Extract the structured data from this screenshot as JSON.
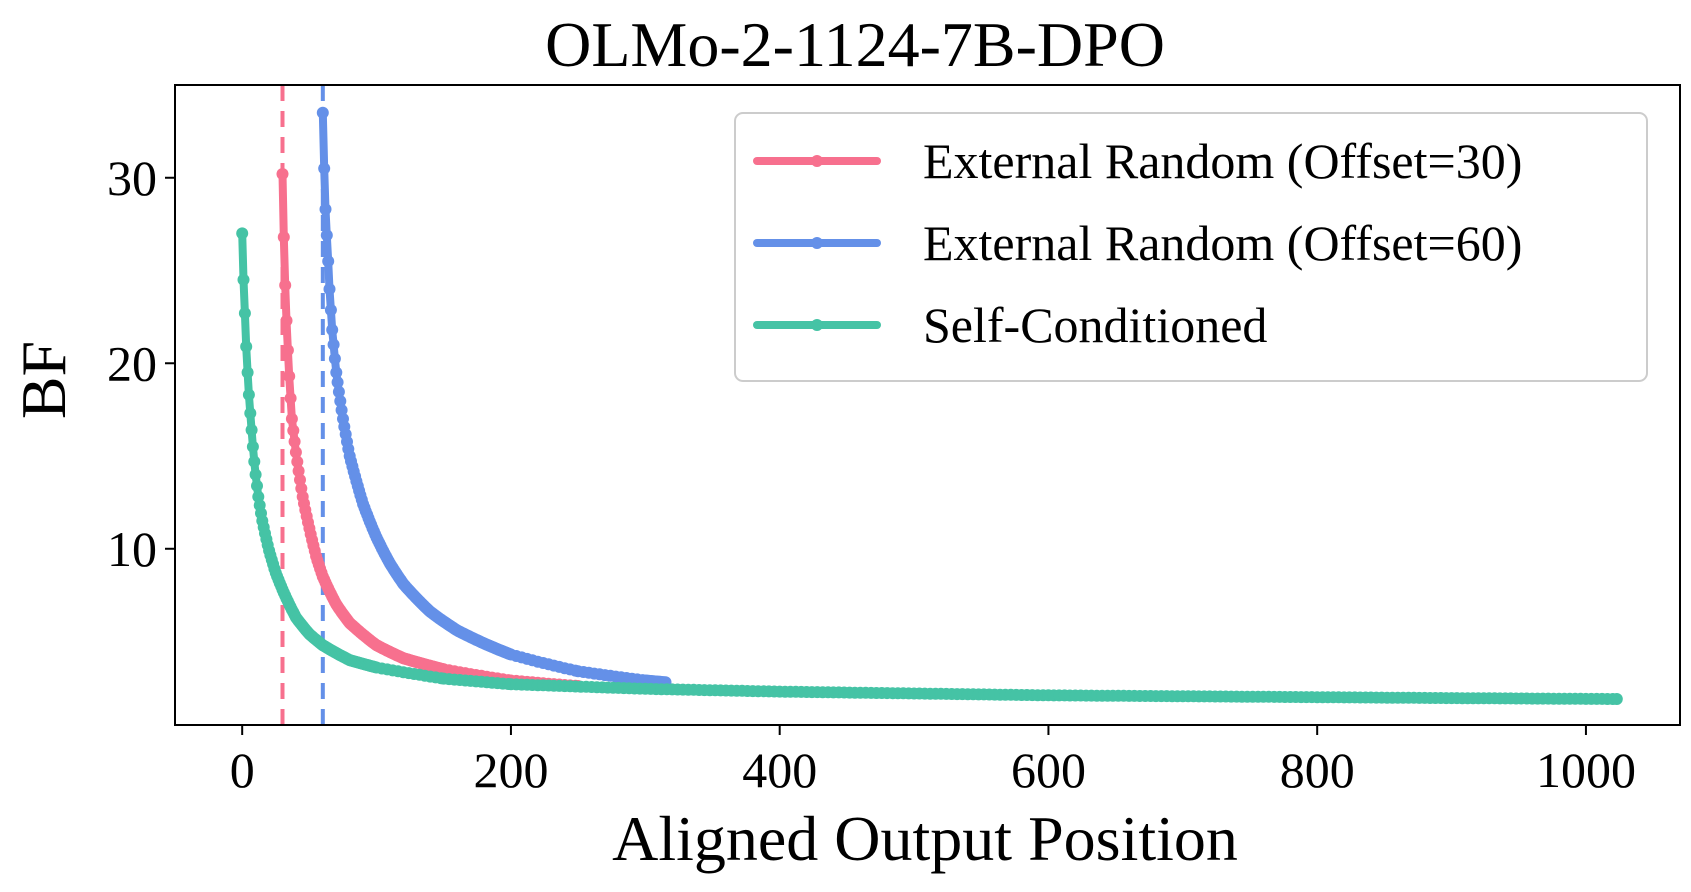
{
  "chart_data": {
    "type": "line",
    "title": "OLMo-2-1124-7B-DPO",
    "xlabel": "Aligned Output Position",
    "ylabel": "BF",
    "xlim": [
      -50,
      1070
    ],
    "ylim": [
      0.5,
      35
    ],
    "xticks": [
      0,
      200,
      400,
      600,
      800,
      1000
    ],
    "yticks": [
      10,
      20,
      30
    ],
    "grid": false,
    "legend_position": "top-right",
    "vlines": [
      {
        "x": 30,
        "color": "#F7708E",
        "style": "dashed"
      },
      {
        "x": 60,
        "color": "#6490E8",
        "style": "dashed"
      }
    ],
    "series": [
      {
        "name": "External Random (Offset=30)",
        "color": "#F7708E",
        "x": [
          30,
          31,
          32,
          33,
          34,
          35,
          37,
          40,
          45,
          50,
          55,
          60,
          70,
          80,
          100,
          120,
          150,
          200,
          250
        ],
        "y": [
          30.2,
          26.8,
          24.2,
          22.3,
          20.7,
          19.3,
          17.0,
          15.2,
          12.8,
          11.1,
          9.6,
          8.5,
          7.0,
          6.0,
          4.8,
          4.1,
          3.5,
          2.9,
          2.6
        ]
      },
      {
        "name": "External Random (Offset=60)",
        "color": "#6490E8",
        "x": [
          60,
          61,
          62,
          63,
          64,
          65,
          67,
          70,
          75,
          80,
          90,
          100,
          110,
          120,
          140,
          160,
          180,
          200,
          250,
          300,
          315
        ],
        "y": [
          33.5,
          30.5,
          28.3,
          26.9,
          25.5,
          24.0,
          21.8,
          19.5,
          17.0,
          15.0,
          12.4,
          10.6,
          9.2,
          8.1,
          6.6,
          5.6,
          4.9,
          4.3,
          3.4,
          2.9,
          2.8
        ]
      },
      {
        "name": "Self-Conditioned",
        "color": "#45C3A5",
        "x": [
          0,
          1,
          2,
          3,
          4,
          5,
          6,
          7,
          8,
          9,
          10,
          12,
          15,
          20,
          25,
          30,
          40,
          50,
          60,
          80,
          100,
          150,
          200,
          300,
          400,
          500,
          600,
          700,
          800,
          900,
          1023
        ],
        "y": [
          27.0,
          24.5,
          22.7,
          20.9,
          19.5,
          18.3,
          17.3,
          16.4,
          15.5,
          14.7,
          14.0,
          12.8,
          11.5,
          9.9,
          8.7,
          7.8,
          6.3,
          5.4,
          4.8,
          4.0,
          3.6,
          3.0,
          2.7,
          2.45,
          2.3,
          2.2,
          2.1,
          2.05,
          2.0,
          1.95,
          1.9
        ]
      }
    ]
  }
}
